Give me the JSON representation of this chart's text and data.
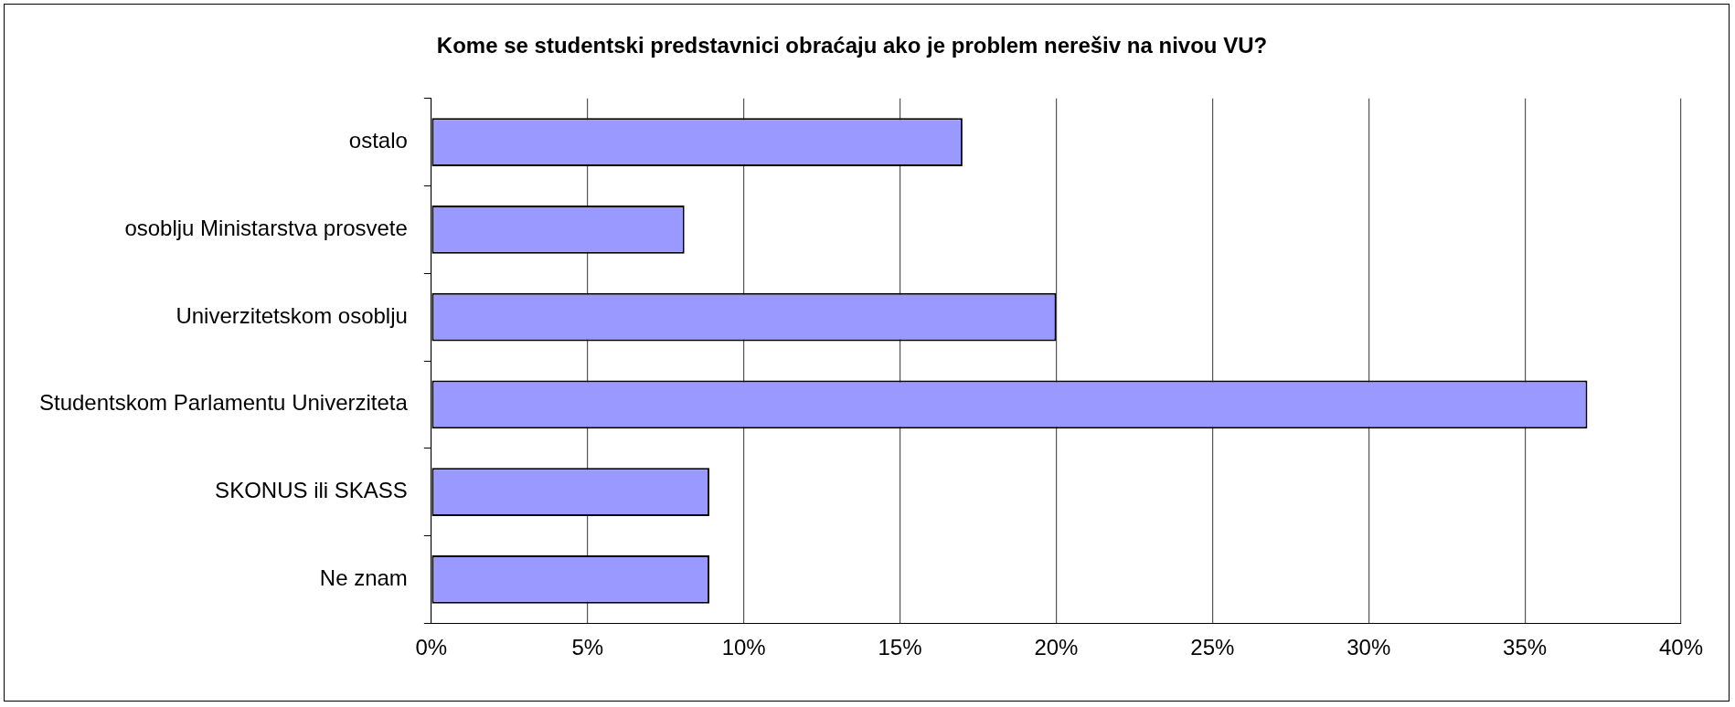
{
  "chart_data": {
    "type": "bar",
    "orientation": "horizontal",
    "title": "Kome se studentski predstavnici obraćaju ako je problem nerešiv na nivou VU?",
    "categories": [
      "ostalo",
      "osoblju Ministarstva prosvete",
      "Univerzitetskom osoblju",
      "Studentskom Parlamentu Univerziteta",
      "SKONUS ili SKASS",
      "Ne znam"
    ],
    "values": [
      17,
      8.1,
      20,
      37,
      8.9,
      8.9
    ],
    "color": "#9999ff",
    "xlim": [
      0,
      40
    ],
    "xticks": [
      {
        "value": 0,
        "label": "0%"
      },
      {
        "value": 5,
        "label": "5%"
      },
      {
        "value": 10,
        "label": "10%"
      },
      {
        "value": 15,
        "label": "15%"
      },
      {
        "value": 20,
        "label": "20%"
      },
      {
        "value": 25,
        "label": "25%"
      },
      {
        "value": 30,
        "label": "30%"
      },
      {
        "value": 35,
        "label": "35%"
      },
      {
        "value": 40,
        "label": "40%"
      }
    ],
    "grid": "x",
    "legend": false
  }
}
